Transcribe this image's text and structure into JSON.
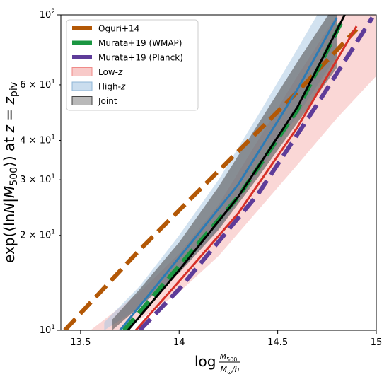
{
  "chart_data": {
    "type": "line",
    "xscale": "linear",
    "yscale": "log",
    "xlim": [
      13.4,
      15.0
    ],
    "ylim": [
      10,
      100
    ],
    "grid": false,
    "legend_position": "top-left",
    "xlabel": "log M500/(M☉/h)",
    "ylabel": "exp(⟨lnN|M500⟩) at z = z_piv",
    "xticks": [
      {
        "value": 13.5,
        "label": "13.5"
      },
      {
        "value": 14.0,
        "label": "14"
      },
      {
        "value": 14.5,
        "label": "14.5"
      },
      {
        "value": 15.0,
        "label": "15"
      }
    ],
    "yticks": [
      {
        "value": 10,
        "label": "10^1"
      },
      {
        "value": 20,
        "label": "2 × 10^1"
      },
      {
        "value": 30,
        "label": "3 × 10^1"
      },
      {
        "value": 40,
        "label": "4 × 10^1"
      },
      {
        "value": 60,
        "label": "6 × 10^1"
      },
      {
        "value": 100,
        "label": "10^2"
      }
    ],
    "bands": [
      {
        "name": "Low-z",
        "color": "#f4a7a5",
        "opacity": 0.45,
        "x": [
          13.55,
          13.8,
          14.0,
          14.2,
          14.4,
          14.6,
          14.8,
          15.0
        ],
        "lower": [
          9.0,
          10.8,
          13.2,
          17.2,
          24.0,
          33.5,
          47.0,
          64.0
        ],
        "upper": [
          10.0,
          13.2,
          17.5,
          25.0,
          40.0,
          64.0,
          100.0,
          140.0
        ]
      },
      {
        "name": "High-z",
        "color": "#a6c6e2",
        "opacity": 0.5,
        "x": [
          13.62,
          13.8,
          14.0,
          14.2,
          14.4,
          14.6,
          14.8
        ],
        "lower": [
          10.0,
          11.8,
          15.3,
          21.0,
          31.5,
          48.0,
          74.0
        ],
        "upper": [
          10.6,
          13.8,
          20.0,
          30.0,
          48.0,
          78.0,
          128.0
        ]
      },
      {
        "name": "Joint",
        "color": "#555555",
        "opacity": 0.6,
        "x": [
          13.66,
          13.8,
          14.0,
          14.2,
          14.4,
          14.6,
          14.8
        ],
        "lower": [
          10.0,
          11.9,
          15.2,
          20.8,
          30.5,
          45.5,
          68.0
        ],
        "upper": [
          10.8,
          13.5,
          19.0,
          28.5,
          45.0,
          71.0,
          110.0
        ]
      }
    ],
    "series": [
      {
        "name": "Oguri+14",
        "color": "#b35806",
        "dash": "dashed",
        "width": 6,
        "x": [
          13.42,
          13.8,
          14.2,
          14.6,
          14.9
        ],
        "y": [
          10.0,
          18.0,
          32.0,
          57.0,
          90.0
        ]
      },
      {
        "name": "Murata+19 (WMAP)",
        "color": "#1a9641",
        "dash": "dashed",
        "width": 6,
        "x": [
          13.72,
          14.0,
          14.3,
          14.6,
          14.82
        ],
        "y": [
          10.0,
          16.0,
          26.5,
          50.0,
          94.0
        ]
      },
      {
        "name": "Murata+19 (Planck)",
        "color": "#5e3c99",
        "dash": "dashed",
        "width": 6,
        "x": [
          13.8,
          14.0,
          14.4,
          14.7,
          14.98
        ],
        "y": [
          10.0,
          13.5,
          27.0,
          52.0,
          98.0
        ]
      },
      {
        "color": "#d73027",
        "dash": "solid",
        "width": 3,
        "x": [
          13.78,
          14.0,
          14.3,
          14.6,
          14.9
        ],
        "y": [
          10.0,
          14.3,
          23.5,
          44.0,
          92.0
        ]
      },
      {
        "color": "#2c7bb6",
        "dash": "solid",
        "width": 3,
        "x": [
          13.7,
          14.0,
          14.3,
          14.6,
          14.8
        ],
        "y": [
          10.0,
          17.0,
          29.0,
          58.0,
          98.0
        ]
      },
      {
        "color": "#000000",
        "dash": "solid",
        "width": 3,
        "x": [
          13.74,
          14.0,
          14.3,
          14.6,
          14.84
        ],
        "y": [
          10.0,
          15.5,
          26.5,
          51.0,
          100.0
        ]
      }
    ],
    "legend": [
      {
        "label": "Oguri+14",
        "kind": "line",
        "color": "#b35806"
      },
      {
        "label": "Murata+19 (WMAP)",
        "kind": "line",
        "color": "#1a9641"
      },
      {
        "label": "Murata+19 (Planck)",
        "kind": "line",
        "color": "#5e3c99"
      },
      {
        "label": "Low-z",
        "kind": "patch",
        "color": "#f4a7a5",
        "edge": "#f08a88"
      },
      {
        "label": "High-z",
        "kind": "patch",
        "color": "#a6c6e2",
        "edge": "#8fb5d6"
      },
      {
        "label": "Joint",
        "kind": "patch",
        "color": "#8a8a8a",
        "edge": "#444444"
      }
    ]
  }
}
